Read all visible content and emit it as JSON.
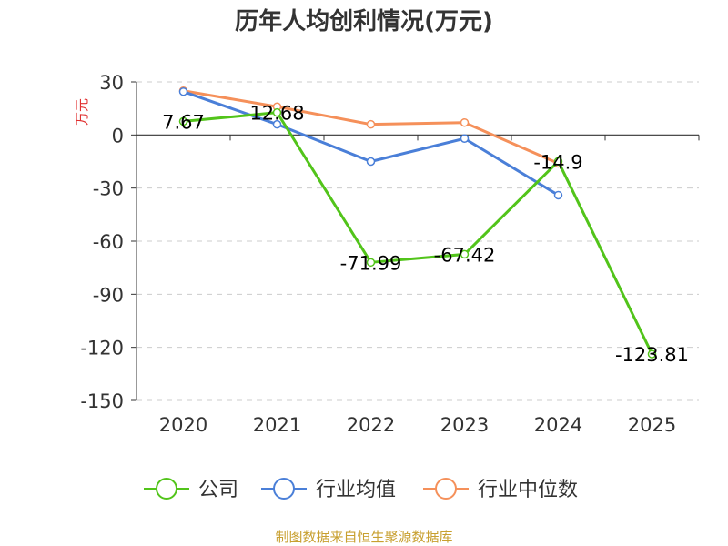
{
  "colors": {
    "company": "#52c41a",
    "industry_avg": "#4a7fd8",
    "industry_median": "#f5905a",
    "axis": "#333333",
    "grid": "#cccccc",
    "ylabel": "#e03030",
    "source": "#c8a030"
  },
  "chart_data": {
    "type": "line",
    "title": "历年人均创利情况(万元)",
    "ylabel": "万元",
    "xlabel": "",
    "categories": [
      "2020",
      "2021",
      "2022",
      "2023",
      "2024",
      "2025"
    ],
    "ylim": [
      -150,
      30
    ],
    "yticks": [
      30,
      0,
      -30,
      -60,
      -90,
      -120,
      -150
    ],
    "grid": true,
    "legend_position": "bottom",
    "series": [
      {
        "name": "公司",
        "key": "company",
        "values": [
          7.67,
          12.68,
          -71.99,
          -67.42,
          -14.9,
          -123.81
        ],
        "labels": [
          "7.67",
          "12.68",
          "-71.99",
          "-67.42",
          "-14.9",
          "-123.81"
        ]
      },
      {
        "name": "行业均值",
        "key": "industry_avg",
        "values": [
          24.5,
          6.0,
          -15.0,
          -2.0,
          -34.0,
          null
        ]
      },
      {
        "name": "行业中位数",
        "key": "industry_median",
        "values": [
          25.0,
          16.0,
          6.0,
          7.0,
          -16.0,
          null
        ]
      }
    ]
  },
  "source_text": "制图数据来自恒生聚源数据库"
}
